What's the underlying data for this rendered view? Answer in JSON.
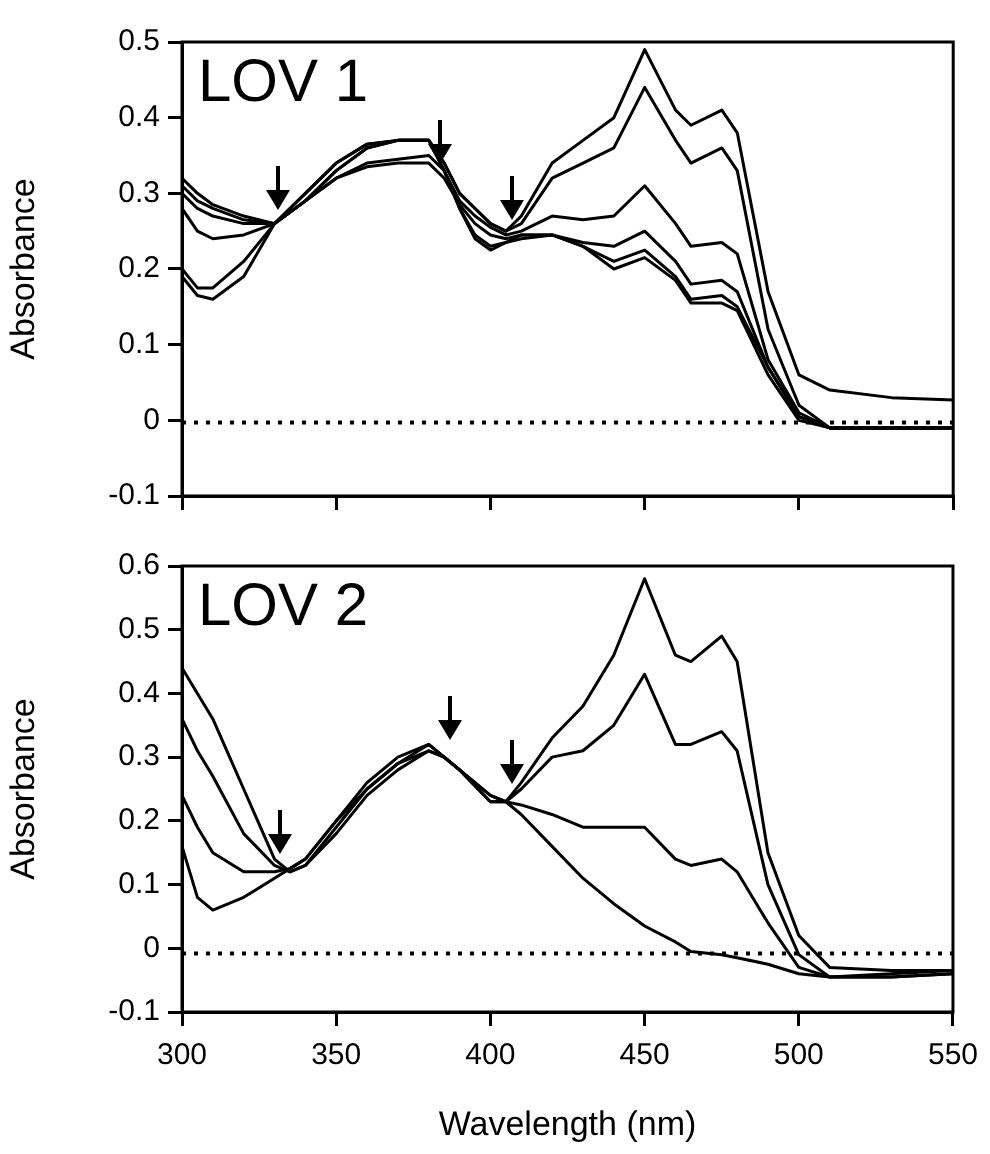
{
  "chart_data": [
    {
      "type": "line",
      "annotations": [
        "LOV 1"
      ],
      "ylabel": "Absorbance",
      "x": [
        300,
        305,
        310,
        320,
        330,
        340,
        350,
        360,
        370,
        380,
        385,
        390,
        395,
        400,
        405,
        410,
        420,
        430,
        440,
        450,
        460,
        465,
        475,
        480,
        490,
        500,
        510,
        530,
        550
      ],
      "series": [
        {
          "color": "#000000",
          "values": [
            0.32,
            0.3,
            0.285,
            0.27,
            0.26,
            0.29,
            0.33,
            0.36,
            0.37,
            0.37,
            0.34,
            0.3,
            0.28,
            0.26,
            0.25,
            0.27,
            0.34,
            0.37,
            0.4,
            0.49,
            0.41,
            0.39,
            0.41,
            0.38,
            0.17,
            0.06,
            0.04,
            0.03,
            0.027
          ]
        },
        {
          "color": "#000000",
          "values": [
            0.31,
            0.29,
            0.28,
            0.265,
            0.26,
            0.29,
            0.33,
            0.36,
            0.37,
            0.37,
            0.34,
            0.3,
            0.28,
            0.26,
            0.25,
            0.26,
            0.32,
            0.34,
            0.36,
            0.44,
            0.37,
            0.34,
            0.36,
            0.33,
            0.12,
            0.02,
            -0.01,
            -0.01,
            -0.01
          ]
        },
        {
          "color": "#000000",
          "values": [
            0.3,
            0.28,
            0.27,
            0.26,
            0.26,
            0.29,
            0.32,
            0.34,
            0.345,
            0.35,
            0.33,
            0.29,
            0.27,
            0.255,
            0.245,
            0.25,
            0.27,
            0.265,
            0.27,
            0.31,
            0.26,
            0.23,
            0.235,
            0.22,
            0.08,
            0.01,
            -0.01,
            -0.01,
            -0.01
          ]
        },
        {
          "color": "#000000",
          "values": [
            0.28,
            0.25,
            0.24,
            0.245,
            0.26,
            0.29,
            0.32,
            0.335,
            0.34,
            0.34,
            0.32,
            0.285,
            0.26,
            0.245,
            0.24,
            0.245,
            0.245,
            0.235,
            0.23,
            0.25,
            0.21,
            0.18,
            0.185,
            0.17,
            0.07,
            0.005,
            -0.01,
            -0.01,
            -0.01
          ]
        },
        {
          "color": "#000000",
          "values": [
            0.2,
            0.175,
            0.175,
            0.21,
            0.26,
            0.3,
            0.34,
            0.365,
            0.37,
            0.37,
            0.33,
            0.28,
            0.245,
            0.23,
            0.235,
            0.245,
            0.245,
            0.23,
            0.21,
            0.225,
            0.19,
            0.16,
            0.165,
            0.15,
            0.07,
            0.005,
            -0.01,
            -0.01,
            -0.01
          ]
        },
        {
          "color": "#000000",
          "values": [
            0.19,
            0.165,
            0.16,
            0.19,
            0.26,
            0.3,
            0.34,
            0.365,
            0.37,
            0.37,
            0.33,
            0.28,
            0.24,
            0.225,
            0.235,
            0.24,
            0.245,
            0.23,
            0.2,
            0.215,
            0.185,
            0.155,
            0.155,
            0.145,
            0.06,
            0,
            -0.01,
            -0.01,
            -0.01
          ]
        }
      ],
      "xlim": [
        300,
        550
      ],
      "xticks": [
        300,
        350,
        400,
        450,
        500,
        550
      ],
      "ylim": [
        -0.1,
        0.5
      ],
      "yticks": [
        -0.1,
        0,
        0.1,
        0.2,
        0.3,
        0.4,
        0.5
      ],
      "tick_labels": "y",
      "marker": "none",
      "line_style": "solid",
      "legend": false,
      "grid": false,
      "ref_lines": [
        {
          "axis": "y",
          "value": -0.003,
          "line_style": "dotted",
          "color": "#000000"
        }
      ]
    },
    {
      "type": "line",
      "annotations": [
        "LOV 2"
      ],
      "xlabel": "Wavelength (nm)",
      "ylabel": "Absorbance",
      "x": [
        300,
        305,
        310,
        320,
        330,
        335,
        340,
        350,
        360,
        370,
        380,
        385,
        390,
        400,
        405,
        410,
        420,
        430,
        440,
        450,
        460,
        465,
        475,
        480,
        490,
        500,
        510,
        530,
        550
      ],
      "series": [
        {
          "color": "#000000",
          "values": [
            0.44,
            0.4,
            0.36,
            0.25,
            0.14,
            0.12,
            0.13,
            0.18,
            0.24,
            0.28,
            0.31,
            0.3,
            0.28,
            0.24,
            0.23,
            0.26,
            0.33,
            0.38,
            0.46,
            0.58,
            0.46,
            0.45,
            0.49,
            0.45,
            0.15,
            0.02,
            -0.03,
            -0.035,
            -0.035
          ]
        },
        {
          "color": "#000000",
          "values": [
            0.36,
            0.31,
            0.27,
            0.18,
            0.13,
            0.12,
            0.13,
            0.19,
            0.25,
            0.29,
            0.32,
            0.3,
            0.28,
            0.23,
            0.23,
            0.25,
            0.3,
            0.31,
            0.35,
            0.43,
            0.32,
            0.32,
            0.34,
            0.31,
            0.1,
            -0.01,
            -0.045,
            -0.045,
            -0.04
          ]
        },
        {
          "color": "#000000",
          "values": [
            0.24,
            0.19,
            0.15,
            0.12,
            0.12,
            0.125,
            0.14,
            0.2,
            0.25,
            0.29,
            0.31,
            0.3,
            0.28,
            0.23,
            0.23,
            0.225,
            0.21,
            0.19,
            0.19,
            0.19,
            0.14,
            0.13,
            0.14,
            0.12,
            0.04,
            -0.03,
            -0.045,
            -0.045,
            -0.04
          ]
        },
        {
          "color": "#000000",
          "values": [
            0.16,
            0.08,
            0.06,
            0.08,
            0.11,
            0.125,
            0.14,
            0.2,
            0.26,
            0.3,
            0.32,
            0.3,
            0.28,
            0.24,
            0.23,
            0.21,
            0.16,
            0.11,
            0.07,
            0.035,
            0.01,
            -0.005,
            -0.01,
            -0.015,
            -0.025,
            -0.04,
            -0.045,
            -0.04,
            -0.035
          ]
        }
      ],
      "xlim": [
        300,
        550
      ],
      "xticks": [
        300,
        350,
        400,
        450,
        500,
        550
      ],
      "ylim": [
        -0.1,
        0.6
      ],
      "yticks": [
        -0.1,
        0,
        0.1,
        0.2,
        0.3,
        0.4,
        0.5,
        0.6
      ],
      "marker": "none",
      "line_style": "solid",
      "legend": false,
      "grid": false,
      "ref_lines": [
        {
          "axis": "y",
          "value": -0.008,
          "line_style": "dotted",
          "color": "#000000"
        }
      ]
    }
  ]
}
